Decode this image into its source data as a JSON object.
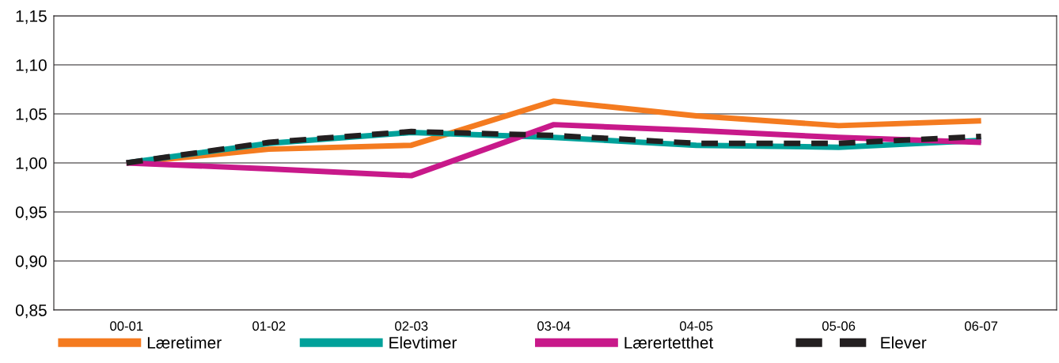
{
  "chart_data": {
    "type": "line",
    "categories": [
      "00-01",
      "01-02",
      "02-03",
      "03-04",
      "04-05",
      "05-06",
      "06-07"
    ],
    "series": [
      {
        "name": "Læretimer",
        "color": "#f47b20",
        "line_style": "solid",
        "values": [
          1.0,
          1.014,
          1.018,
          1.063,
          1.048,
          1.038,
          1.043
        ]
      },
      {
        "name": "Elevtimer",
        "color": "#00a19a",
        "line_style": "solid",
        "values": [
          1.0,
          1.02,
          1.031,
          1.026,
          1.018,
          1.016,
          1.023
        ]
      },
      {
        "name": "Lærertetthet",
        "color": "#c8198a",
        "line_style": "solid",
        "values": [
          1.0,
          0.994,
          0.987,
          1.039,
          1.033,
          1.026,
          1.021
        ]
      },
      {
        "name": "Elever",
        "color": "#231f20",
        "line_style": "dashed",
        "values": [
          1.0,
          1.021,
          1.032,
          1.028,
          1.02,
          1.02,
          1.027
        ]
      }
    ],
    "ylim": [
      0.85,
      1.15
    ],
    "yticks": [
      {
        "value": 0.85,
        "label": "0,85"
      },
      {
        "value": 0.9,
        "label": "0,90"
      },
      {
        "value": 0.95,
        "label": "0,95"
      },
      {
        "value": 1.0,
        "label": "1,00"
      },
      {
        "value": 1.05,
        "label": "1,05"
      },
      {
        "value": 1.1,
        "label": "1,10"
      },
      {
        "value": 1.15,
        "label": "1,15"
      }
    ],
    "grid": "y",
    "legend": "bottom",
    "marker": "none"
  }
}
